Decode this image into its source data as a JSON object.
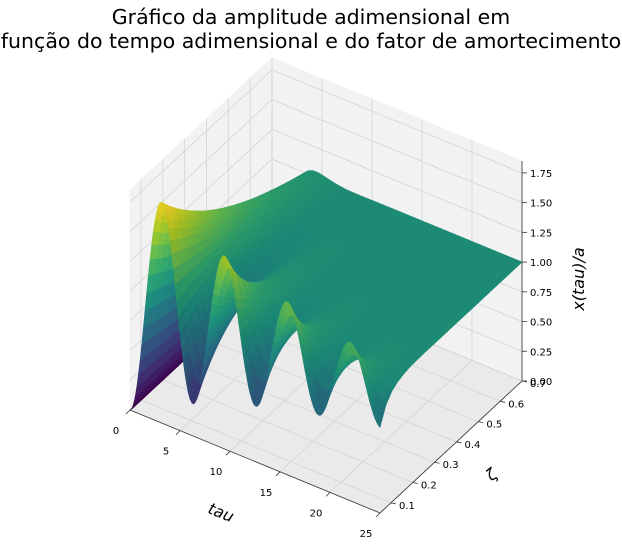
{
  "chart_data": {
    "type": "surface3d",
    "title_lines": [
      "Gráfico da amplitude adimensional em",
      "função do tempo adimensional e do fator de amortecimento"
    ],
    "xlabel": "tau",
    "ylabel": "ζ",
    "zlabel": "x(tau)/a",
    "xlim": [
      0,
      25
    ],
    "ylim": [
      0.05,
      0.7
    ],
    "zlim": [
      0,
      1.85
    ],
    "xticks": [
      "0",
      "5",
      "10",
      "15",
      "20",
      "25"
    ],
    "yticks": [
      "0.1",
      "0.2",
      "0.3",
      "0.4",
      "0.5",
      "0.6",
      "0.7"
    ],
    "zticks": [
      "0.00",
      "0.25",
      "0.50",
      "0.75",
      "1.00",
      "1.25",
      "1.50",
      "1.75"
    ],
    "function": "x(tau)/a = 1 - exp(-zeta*tau) * (cos(sqrt(1-zeta^2)*tau) + zeta/sqrt(1-zeta^2)*sin(sqrt(1-zeta^2)*tau))",
    "colormap": "viridis",
    "grid": true
  }
}
